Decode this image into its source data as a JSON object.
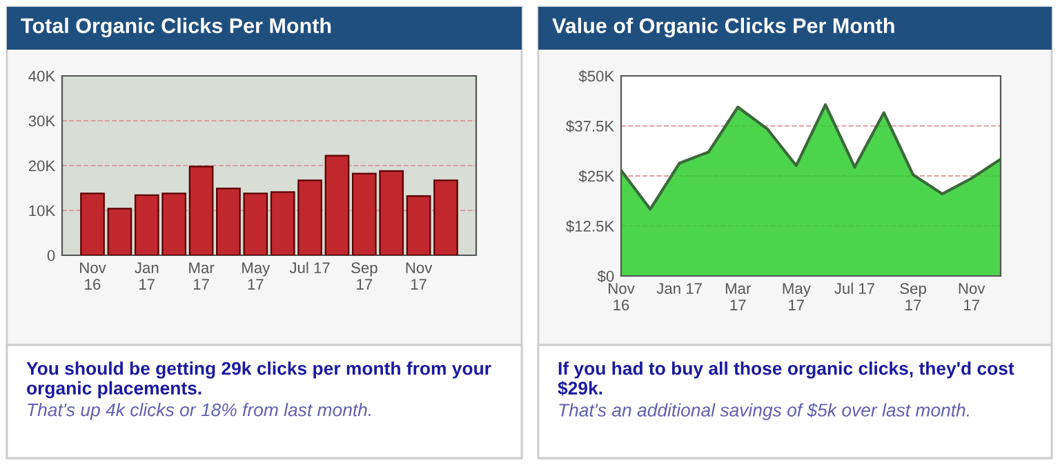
{
  "chart_data": [
    {
      "type": "bar",
      "title": "Total Organic Clicks Per Month",
      "categories": [
        "Nov\n16",
        null,
        "Jan\n17",
        null,
        "Mar\n17",
        null,
        "May\n17",
        null,
        "Jul 17",
        null,
        "Sep\n17",
        null,
        "Nov\n17",
        null
      ],
      "values": [
        13800,
        10400,
        13400,
        13800,
        19800,
        14900,
        13800,
        14100,
        16700,
        22200,
        18200,
        18800,
        13200,
        16700
      ],
      "color": "#c0282d",
      "ylim": [
        0,
        40000
      ],
      "yticks": [
        0,
        {
          "value": 10000,
          "label": "10K"
        },
        {
          "value": 20000,
          "label": "20K"
        },
        {
          "value": 30000,
          "label": "30K"
        },
        {
          "value": 40000,
          "label": "40K"
        }
      ],
      "grid": "y",
      "annotations": [
        "You should be getting 29k clicks per month from your organic placements.",
        "That's up 4k clicks or 18% from last month."
      ]
    },
    {
      "type": "area",
      "title": "Value of Organic Clicks Per Month",
      "categories": [
        "Nov\n16",
        null,
        "Jan 17",
        null,
        "Mar\n17",
        null,
        "May\n17",
        null,
        "Jul 17",
        null,
        "Sep\n17",
        null,
        "Nov\n17",
        null
      ],
      "values": [
        26400,
        16700,
        28200,
        31000,
        42200,
        36800,
        27600,
        42800,
        27200,
        40800,
        25300,
        20500,
        24400,
        29200
      ],
      "color": "#2ecc2e",
      "ylim": [
        0,
        50000
      ],
      "yticks": [
        {
          "value": 0,
          "label": "$0"
        },
        {
          "value": 12500,
          "label": "$12.5K"
        },
        {
          "value": 25000,
          "label": "$25K"
        },
        {
          "value": 37500,
          "label": "$37.5K"
        },
        {
          "value": 50000,
          "label": "$50K"
        }
      ],
      "grid": "y",
      "annotations": [
        "If you had to buy all those organic clicks, they'd cost $29k.",
        "That's an additional savings of $5k over last month."
      ]
    }
  ]
}
